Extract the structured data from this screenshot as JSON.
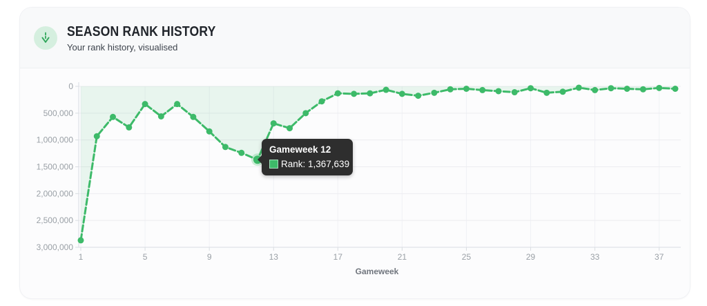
{
  "header": {
    "title": "SEASON RANK HISTORY",
    "subtitle": "Your rank history, visualised",
    "icon": "trend-down-icon"
  },
  "colors": {
    "line_green": "#3dba69",
    "fill_green": "#3dba69",
    "icon_bg": "#d5efdf",
    "icon_glyph": "#2fa65a",
    "tooltip_bg": "#2e2e2e",
    "grid": "#ececf0",
    "axis": "#d9dde2",
    "tick_text": "#9aa0a6"
  },
  "chart_data": {
    "type": "line",
    "title": "Season Rank History",
    "xlabel": "Gameweek",
    "ylabel": "",
    "legend": false,
    "grid": true,
    "y_inverted": true,
    "ylim": [
      0,
      3000000
    ],
    "xlim": [
      1,
      38
    ],
    "x_ticks": [
      1,
      5,
      9,
      13,
      17,
      21,
      25,
      29,
      33,
      37
    ],
    "y_ticks": [
      "0",
      "500,000",
      "1,000,000",
      "1,500,000",
      "2,000,000",
      "2,500,000",
      "3,000,000"
    ],
    "x": [
      1,
      2,
      3,
      4,
      5,
      6,
      7,
      8,
      9,
      10,
      11,
      12,
      13,
      14,
      15,
      16,
      17,
      18,
      19,
      20,
      21,
      22,
      23,
      24,
      25,
      26,
      27,
      28,
      29,
      30,
      31,
      32,
      33,
      34,
      35,
      36,
      37,
      38
    ],
    "series": [
      {
        "name": "Rank",
        "values": [
          2870000,
          930000,
          570000,
          765000,
          330000,
          560000,
          330000,
          570000,
          840000,
          1130000,
          1240000,
          1367639,
          690000,
          780000,
          500000,
          280000,
          130000,
          140000,
          130000,
          65000,
          140000,
          175000,
          120000,
          55000,
          45000,
          70000,
          90000,
          110000,
          35000,
          120000,
          100000,
          25000,
          70000,
          35000,
          45000,
          55000,
          30000,
          45000
        ]
      }
    ]
  },
  "tooltip": {
    "gameweek": 12,
    "title": "Gameweek 12",
    "label": "Rank: 1,367,639",
    "value": 1367639
  }
}
